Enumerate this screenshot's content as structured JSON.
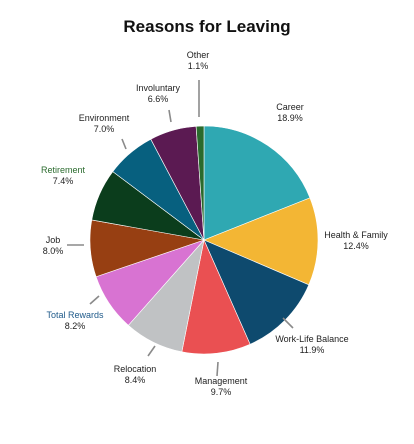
{
  "chart_data": {
    "type": "pie",
    "title": "Reasons for Leaving",
    "start_angle_deg": 0,
    "direction": "clockwise",
    "slices": [
      {
        "label": "Career",
        "value": 18.9,
        "value_label": "18.9%",
        "color": "#2fa8b2",
        "label_color": "#222222"
      },
      {
        "label": "Health & Family",
        "value": 12.4,
        "value_label": "12.4%",
        "color": "#f3b634",
        "label_color": "#222222"
      },
      {
        "label": "Work-Life Balance",
        "value": 11.9,
        "value_label": "11.9%",
        "color": "#0e4a6e",
        "label_color": "#222222"
      },
      {
        "label": "Management",
        "value": 9.7,
        "value_label": "9.7%",
        "color": "#ea5052",
        "label_color": "#222222"
      },
      {
        "label": "Relocation",
        "value": 8.4,
        "value_label": "8.4%",
        "color": "#c0c2c4",
        "label_color": "#222222"
      },
      {
        "label": "Total Rewards",
        "value": 8.2,
        "value_label": "8.2%",
        "color": "#d873d2",
        "label_color": "#1f5a8a"
      },
      {
        "label": "Job",
        "value": 8.0,
        "value_label": "8.0%",
        "color": "#973f12",
        "label_color": "#222222"
      },
      {
        "label": "Retirement",
        "value": 7.4,
        "value_label": "7.4%",
        "color": "#0b3d1c",
        "label_color": "#2b6b2e"
      },
      {
        "label": "Environment",
        "value": 7.0,
        "value_label": "7.0%",
        "color": "#07607f",
        "label_color": "#222222"
      },
      {
        "label": "Involuntary",
        "value": 6.6,
        "value_label": "6.6%",
        "color": "#5b1a52",
        "label_color": "#222222"
      },
      {
        "label": "Other",
        "value": 1.1,
        "value_label": "1.1%",
        "color": "#2a6a2c",
        "label_color": "#222222"
      }
    ]
  }
}
